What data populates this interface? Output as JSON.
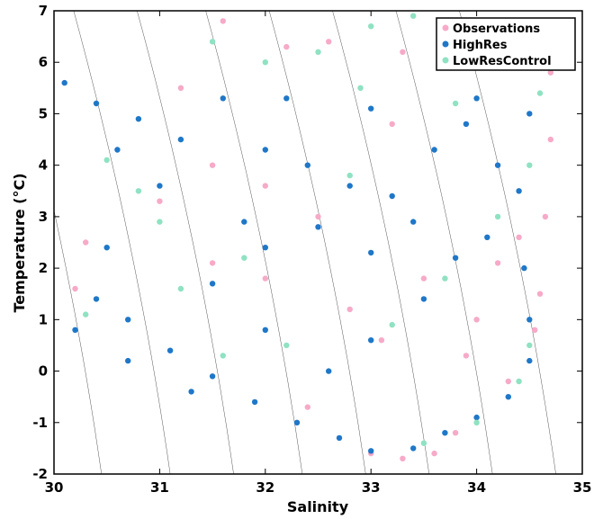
{
  "chart_data": {
    "type": "scatter",
    "xlabel": "Salinity",
    "ylabel": "Temperature (°C)",
    "xlim": [
      30,
      35
    ],
    "ylim": [
      -2,
      7
    ],
    "xticks": [
      "30",
      "31",
      "32",
      "33",
      "34",
      "35"
    ],
    "yticks": [
      "-2",
      "-1",
      "0",
      "1",
      "2",
      "3",
      "4",
      "5",
      "6",
      "7"
    ],
    "grid": false,
    "legend_position": "top-right",
    "isopycnals": "thin gray lines",
    "series": [
      {
        "name": "Observations",
        "color": "#f7aac8",
        "points": [
          [
            34.7,
            5.8
          ],
          [
            34.7,
            4.5
          ],
          [
            34.65,
            3.0
          ],
          [
            34.6,
            1.5
          ],
          [
            34.55,
            0.8
          ],
          [
            34.4,
            2.6
          ],
          [
            34.2,
            2.1
          ],
          [
            33.9,
            0.3
          ],
          [
            33.6,
            -1.6
          ],
          [
            33.3,
            -1.7
          ],
          [
            33.0,
            -1.6
          ],
          [
            33.2,
            4.8
          ],
          [
            33.3,
            6.2
          ],
          [
            32.6,
            6.4
          ],
          [
            32.2,
            6.3
          ],
          [
            31.6,
            6.8
          ],
          [
            31.2,
            5.5
          ],
          [
            30.2,
            1.6
          ],
          [
            30.3,
            2.5
          ],
          [
            31.0,
            3.3
          ],
          [
            31.5,
            4.0
          ],
          [
            32.0,
            3.6
          ],
          [
            32.5,
            3.0
          ],
          [
            32.8,
            1.2
          ],
          [
            33.1,
            0.6
          ],
          [
            33.5,
            1.8
          ],
          [
            34.0,
            1.0
          ],
          [
            34.3,
            -0.2
          ],
          [
            33.8,
            -1.2
          ],
          [
            32.4,
            -0.7
          ],
          [
            32.0,
            1.8
          ],
          [
            31.5,
            2.1
          ]
        ]
      },
      {
        "name": "HighRes",
        "color": "#1f77c8",
        "points": [
          [
            30.1,
            5.6
          ],
          [
            30.4,
            5.2
          ],
          [
            30.8,
            4.9
          ],
          [
            31.2,
            4.5
          ],
          [
            31.6,
            5.3
          ],
          [
            32.0,
            4.3
          ],
          [
            32.4,
            4.0
          ],
          [
            32.8,
            3.6
          ],
          [
            33.2,
            3.4
          ],
          [
            33.6,
            4.3
          ],
          [
            34.0,
            5.3
          ],
          [
            34.3,
            6.2
          ],
          [
            34.6,
            6.8
          ],
          [
            34.9,
            6.5
          ],
          [
            34.5,
            5.0
          ],
          [
            34.4,
            3.5
          ],
          [
            34.45,
            2.0
          ],
          [
            34.5,
            1.0
          ],
          [
            34.5,
            0.2
          ],
          [
            34.3,
            -0.5
          ],
          [
            34.0,
            -0.9
          ],
          [
            33.7,
            -1.2
          ],
          [
            33.4,
            -1.5
          ],
          [
            33.0,
            -1.55
          ],
          [
            32.7,
            -1.3
          ],
          [
            32.3,
            -1.0
          ],
          [
            31.9,
            -0.6
          ],
          [
            31.5,
            -0.1
          ],
          [
            31.1,
            0.4
          ],
          [
            30.7,
            1.0
          ],
          [
            30.4,
            1.4
          ],
          [
            30.7,
            0.2
          ],
          [
            31.3,
            -0.4
          ],
          [
            32.0,
            2.4
          ],
          [
            32.5,
            2.8
          ],
          [
            33.0,
            2.3
          ],
          [
            33.5,
            1.4
          ],
          [
            33.0,
            0.6
          ],
          [
            32.6,
            0.0
          ],
          [
            32.0,
            0.8
          ],
          [
            31.5,
            1.7
          ],
          [
            31.8,
            2.9
          ],
          [
            33.4,
            2.9
          ],
          [
            33.8,
            2.2
          ],
          [
            34.1,
            2.6
          ],
          [
            34.2,
            4.0
          ],
          [
            33.9,
            4.8
          ],
          [
            33.0,
            5.1
          ],
          [
            32.2,
            5.3
          ],
          [
            31.0,
            3.6
          ],
          [
            30.6,
            4.3
          ],
          [
            30.5,
            2.4
          ],
          [
            30.2,
            0.8
          ]
        ]
      },
      {
        "name": "LowResControl",
        "color": "#8fe2c2",
        "points": [
          [
            33.4,
            6.9
          ],
          [
            33.0,
            6.7
          ],
          [
            32.5,
            6.2
          ],
          [
            32.0,
            6.0
          ],
          [
            31.5,
            6.4
          ],
          [
            34.0,
            6.6
          ],
          [
            34.4,
            6.0
          ],
          [
            34.6,
            5.4
          ],
          [
            34.5,
            4.0
          ],
          [
            34.5,
            0.5
          ],
          [
            34.4,
            -0.2
          ],
          [
            34.0,
            -1.0
          ],
          [
            33.5,
            -1.4
          ],
          [
            31.0,
            2.9
          ],
          [
            30.8,
            3.5
          ],
          [
            30.5,
            4.1
          ],
          [
            30.3,
            1.1
          ],
          [
            31.2,
            1.6
          ],
          [
            31.8,
            2.2
          ],
          [
            32.8,
            3.8
          ],
          [
            33.2,
            0.9
          ],
          [
            33.7,
            1.8
          ],
          [
            34.2,
            3.0
          ],
          [
            32.2,
            0.5
          ],
          [
            31.6,
            0.3
          ],
          [
            32.9,
            5.5
          ],
          [
            33.8,
            5.2
          ]
        ]
      }
    ]
  }
}
